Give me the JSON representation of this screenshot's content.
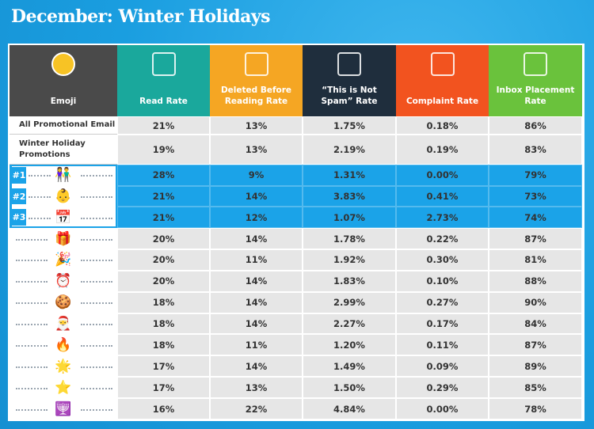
{
  "header": {
    "title": "December: Winter Holidays"
  },
  "table": {
    "columns": [
      "Emoji",
      "Read Rate",
      "Deleted Before Reading Rate",
      "“This is Not Spam” Rate",
      "Complaint Rate",
      "Inbox Placement Rate"
    ],
    "summary_rows": [
      {
        "label": "All Promotional Email",
        "cells": [
          "21%",
          "13%",
          "1.75%",
          "0.18%",
          "86%"
        ]
      },
      {
        "label": "Winter Holiday Promotions",
        "cells": [
          "19%",
          "13%",
          "2.19%",
          "0.19%",
          "83%"
        ]
      }
    ],
    "ranked_rows": [
      {
        "rank": "#1",
        "emoji": "👫",
        "cells": [
          "28%",
          "9%",
          "1.31%",
          "0.00%",
          "79%"
        ]
      },
      {
        "rank": "#2",
        "emoji": "👶",
        "cells": [
          "21%",
          "14%",
          "3.83%",
          "0.41%",
          "73%"
        ]
      },
      {
        "rank": "#3",
        "emoji": "📅",
        "cells": [
          "21%",
          "12%",
          "1.07%",
          "2.73%",
          "74%"
        ]
      }
    ],
    "rows": [
      {
        "emoji": "🎁",
        "cells": [
          "20%",
          "14%",
          "1.78%",
          "0.22%",
          "87%"
        ]
      },
      {
        "emoji": "🎉",
        "cells": [
          "20%",
          "11%",
          "1.92%",
          "0.30%",
          "81%"
        ]
      },
      {
        "emoji": "⏰",
        "cells": [
          "20%",
          "14%",
          "1.83%",
          "0.10%",
          "88%"
        ]
      },
      {
        "emoji": "🍪",
        "cells": [
          "18%",
          "14%",
          "2.99%",
          "0.27%",
          "90%"
        ]
      },
      {
        "emoji": "🎅",
        "cells": [
          "18%",
          "14%",
          "2.27%",
          "0.17%",
          "84%"
        ]
      },
      {
        "emoji": "🔥",
        "cells": [
          "18%",
          "11%",
          "1.20%",
          "0.11%",
          "87%"
        ]
      },
      {
        "emoji": "🌟",
        "cells": [
          "17%",
          "14%",
          "1.49%",
          "0.09%",
          "89%"
        ]
      },
      {
        "emoji": "⭐",
        "cells": [
          "17%",
          "13%",
          "1.50%",
          "0.29%",
          "85%"
        ]
      },
      {
        "emoji": "🕎",
        "cells": [
          "16%",
          "22%",
          "4.84%",
          "0.00%",
          "78%"
        ]
      }
    ]
  }
}
